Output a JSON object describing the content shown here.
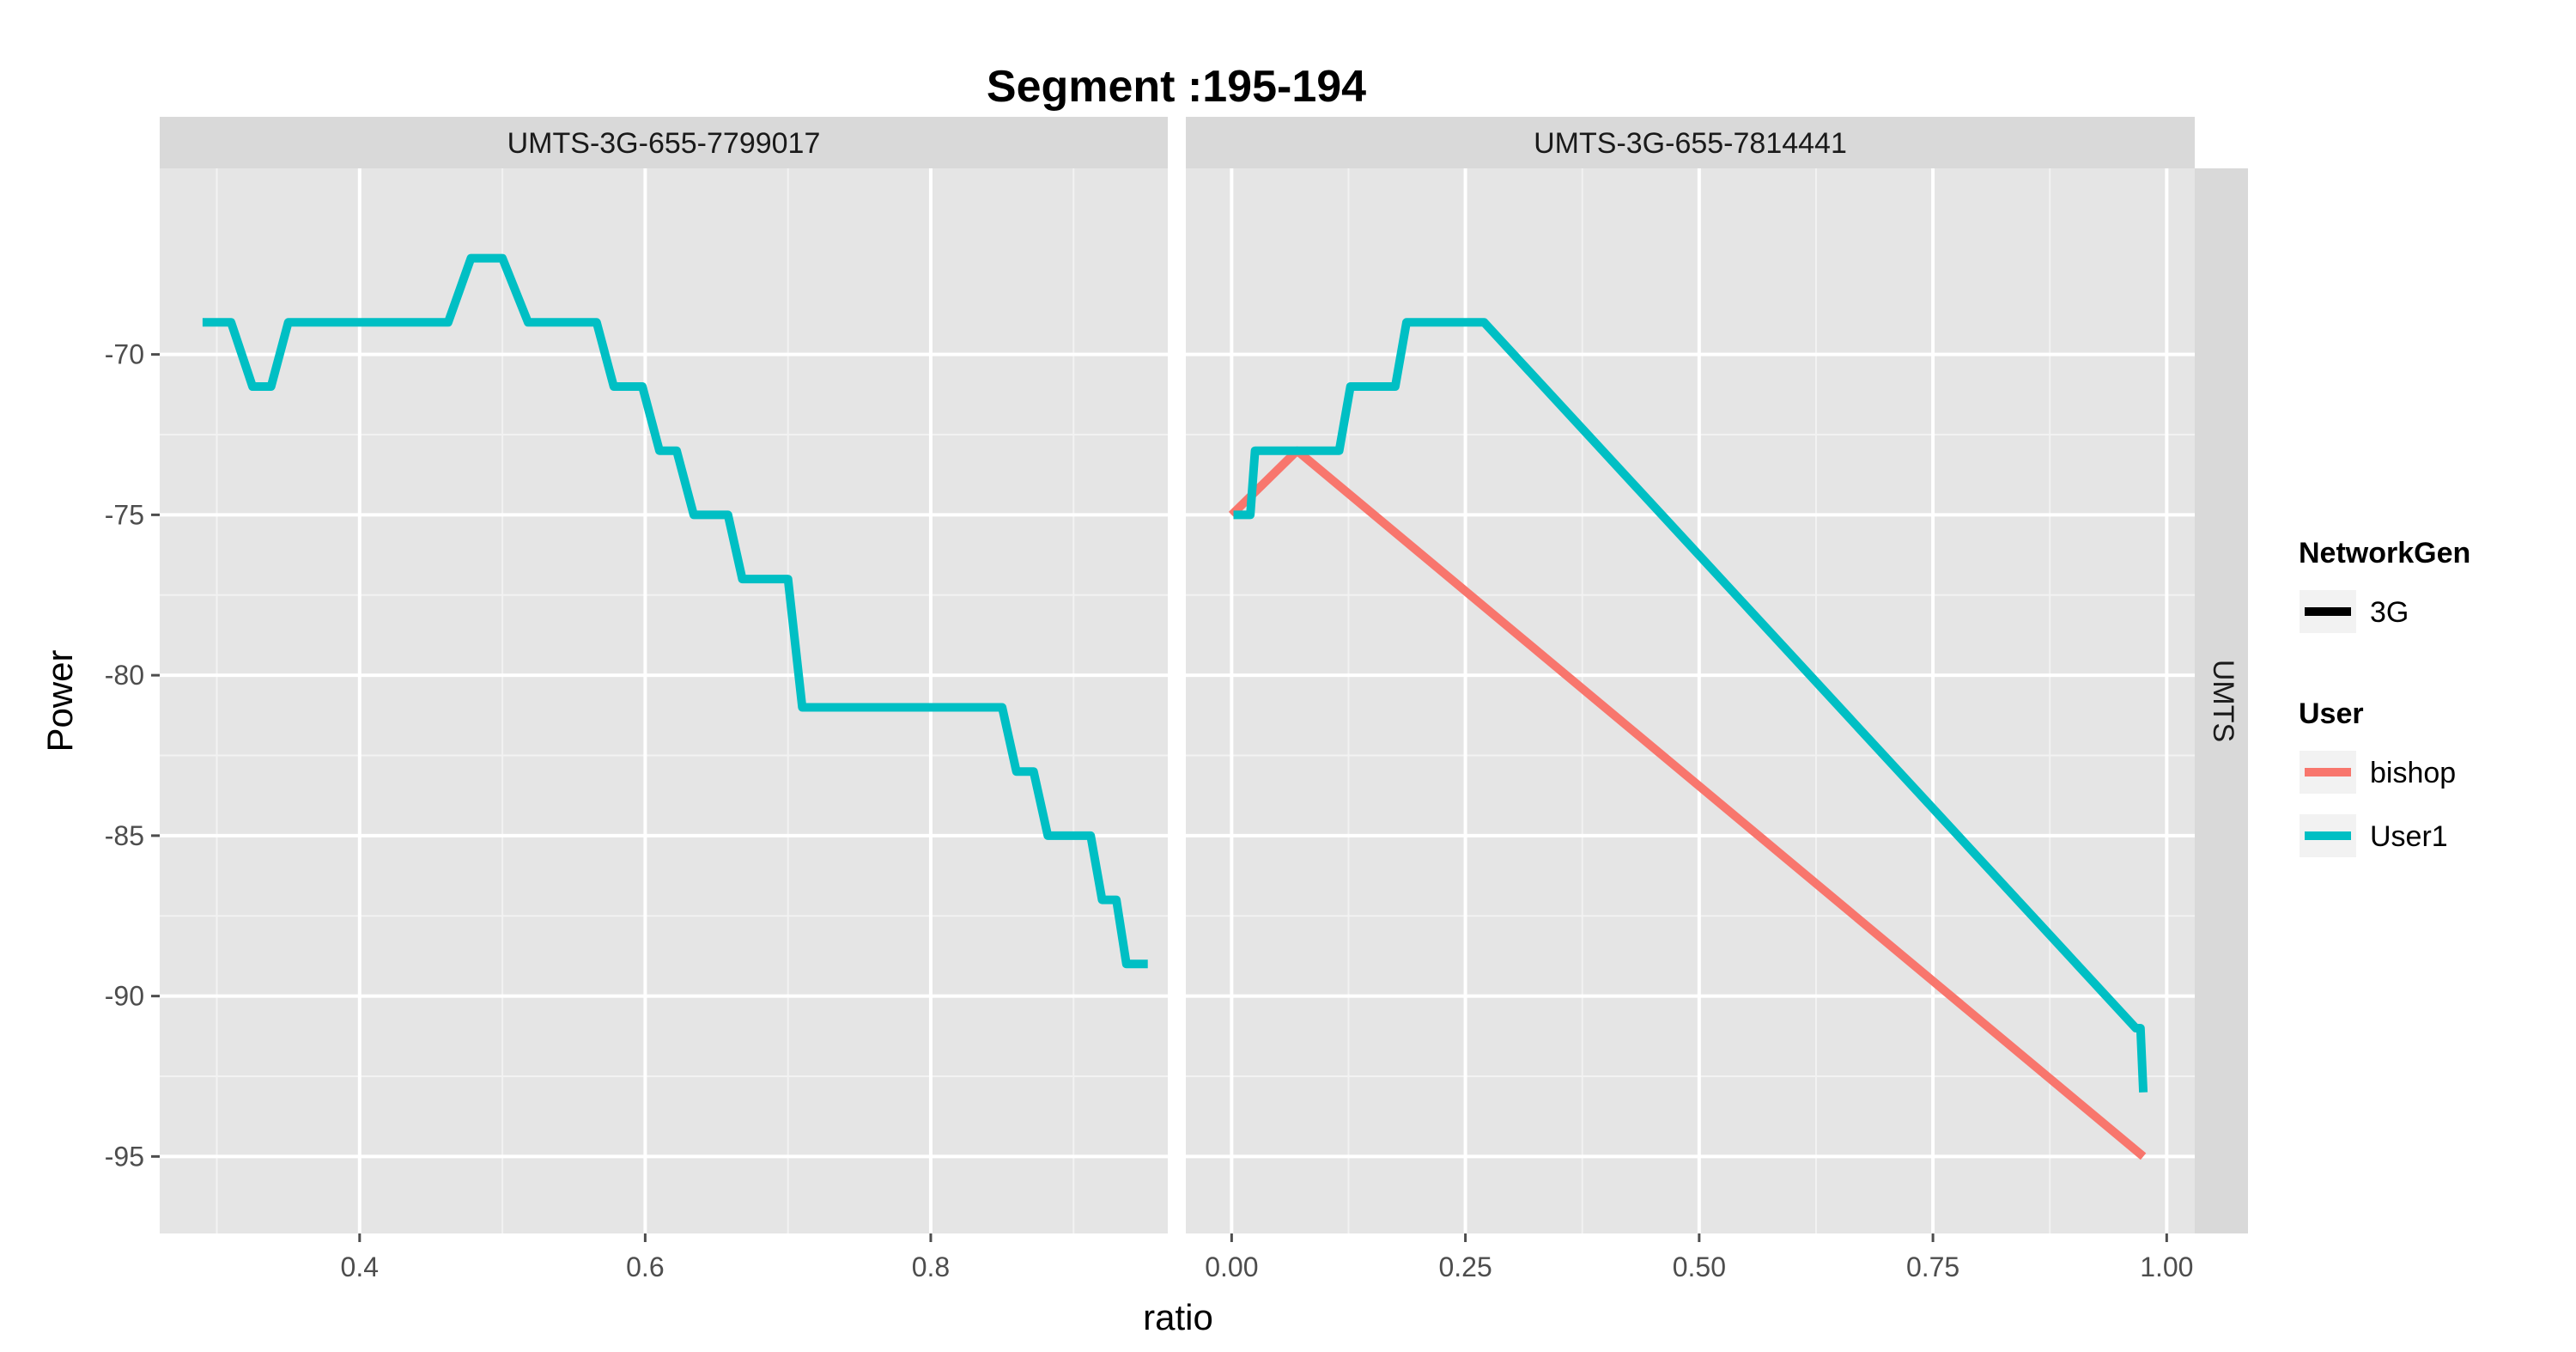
{
  "chart_data": {
    "type": "line",
    "title": "Segment :195-194",
    "xlabel": "ratio",
    "ylabel": "Power",
    "row_strip": "UMTS",
    "ylim": [
      -97.4,
      -64.2
    ],
    "yticks": [
      -70,
      -75,
      -80,
      -85,
      -90,
      -95
    ],
    "ytick_labels": [
      "-70",
      "-75",
      "-80",
      "-85",
      "-90",
      "-95"
    ],
    "grid": true,
    "legend_position": "right",
    "legend": {
      "network_title": "NetworkGen",
      "network_items": [
        {
          "label": "3G",
          "color": "#000000"
        }
      ],
      "user_title": "User",
      "user_items": [
        {
          "label": "bishop",
          "color": "#F8766D"
        },
        {
          "label": "User1",
          "color": "#00BFC4"
        }
      ]
    },
    "panels": [
      {
        "strip": "UMTS-3G-655-7799017",
        "xlim": [
          0.26,
          0.966
        ],
        "xticks": [
          0.4,
          0.6,
          0.8
        ],
        "xtick_labels": [
          "0.4",
          "0.6",
          "0.8"
        ],
        "series": [
          {
            "name": "User1",
            "color": "#00BFC4",
            "x": [
              0.29,
              0.31,
              0.325,
              0.338,
              0.35,
              0.4,
              0.462,
              0.478,
              0.5,
              0.518,
              0.566,
              0.578,
              0.598,
              0.61,
              0.622,
              0.634,
              0.658,
              0.668,
              0.692,
              0.7,
              0.71,
              0.85,
              0.86,
              0.872,
              0.882,
              0.912,
              0.92,
              0.93,
              0.937,
              0.952
            ],
            "y": [
              -69,
              -69,
              -71,
              -71,
              -69,
              -69,
              -69,
              -67,
              -67,
              -69,
              -69,
              -71,
              -71,
              -73,
              -73,
              -75,
              -75,
              -77,
              -77,
              -77,
              -81,
              -81,
              -83,
              -83,
              -85,
              -85,
              -87,
              -87,
              -89,
              -89
            ]
          }
        ]
      },
      {
        "strip": "UMTS-3G-655-7814441",
        "xlim": [
          -0.049,
          1.03
        ],
        "xticks": [
          0.0,
          0.25,
          0.5,
          0.75,
          1.0
        ],
        "xtick_labels": [
          "0.00",
          "0.25",
          "0.50",
          "0.75",
          "1.00"
        ],
        "series": [
          {
            "name": "bishop",
            "color": "#F8766D",
            "x": [
              0.0,
              0.07,
              0.975
            ],
            "y": [
              -75,
              -73,
              -95
            ]
          },
          {
            "name": "User1",
            "color": "#00BFC4",
            "x": [
              0.002,
              0.02,
              0.025,
              0.115,
              0.127,
              0.175,
              0.187,
              0.27,
              0.967,
              0.972,
              0.975,
              0.975
            ],
            "y": [
              -75,
              -75,
              -73,
              -73,
              -71,
              -71,
              -69,
              -69,
              -91,
              -91,
              -93,
              -93
            ]
          }
        ]
      }
    ]
  }
}
